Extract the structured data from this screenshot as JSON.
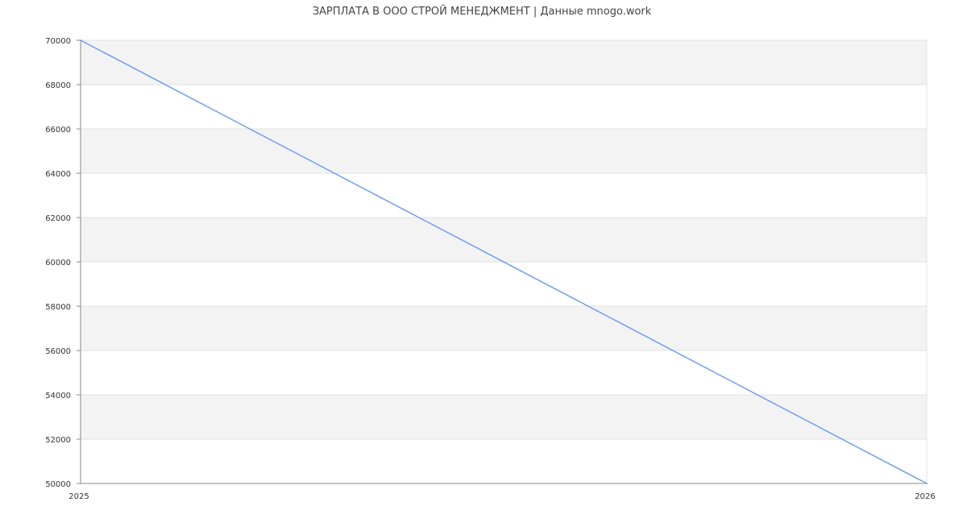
{
  "chart_data": {
    "type": "line",
    "title": "ЗАРПЛАТА В ООО СТРОЙ МЕНЕДЖМЕНТ | Данные mnogo.work",
    "xlabel": "",
    "ylabel": "",
    "x": [
      "2025",
      "2026"
    ],
    "series": [
      {
        "values": [
          70000,
          50000
        ],
        "color": "#6f9cf5"
      }
    ],
    "ylim": [
      50000,
      70000
    ],
    "yticks": [
      50000,
      52000,
      54000,
      56000,
      58000,
      60000,
      62000,
      64000,
      66000,
      68000,
      70000
    ],
    "xticks": [
      "2025",
      "2026"
    ],
    "grid": true,
    "band_color": "#f3f3f3",
    "grid_color": "#e2e2e2",
    "axis_color": "#888888"
  }
}
